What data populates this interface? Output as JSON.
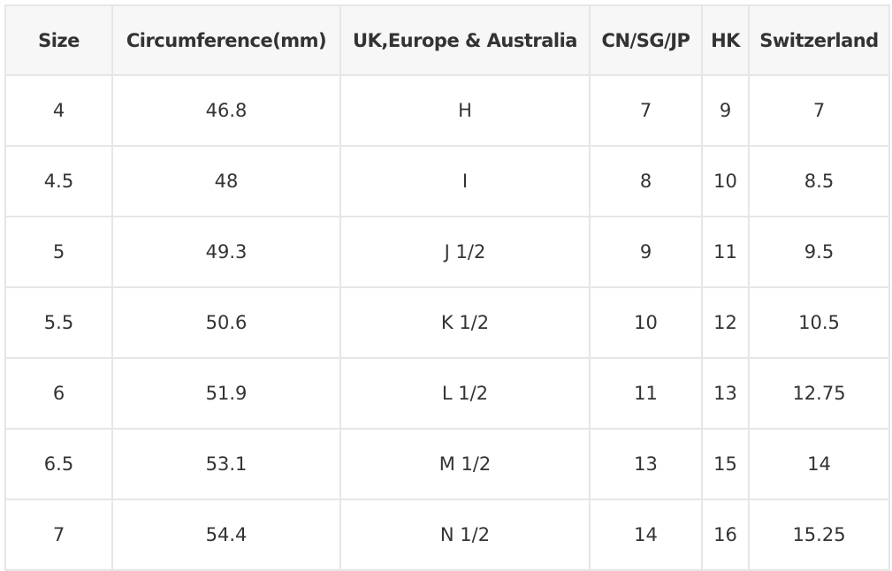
{
  "table": {
    "header": [
      "Size",
      "Circumference(mm)",
      "UK,Europe & Australia",
      "CN/SG/JP",
      "HK",
      "Switzerland"
    ],
    "rows": [
      [
        "4",
        "46.8",
        "H",
        "7",
        "9",
        "7"
      ],
      [
        "4.5",
        "48",
        "I",
        "8",
        "10",
        "8.5"
      ],
      [
        "5",
        "49.3",
        "J 1/2",
        "9",
        "11",
        "9.5"
      ],
      [
        "5.5",
        "50.6",
        "K 1/2",
        "10",
        "12",
        "10.5"
      ],
      [
        "6",
        "51.9",
        "L 1/2",
        "11",
        "13",
        "12.75"
      ],
      [
        "6.5",
        "53.1",
        "M 1/2",
        "13",
        "15",
        "14"
      ],
      [
        "7",
        "54.4",
        "N 1/2",
        "14",
        "16",
        "15.25"
      ]
    ]
  }
}
